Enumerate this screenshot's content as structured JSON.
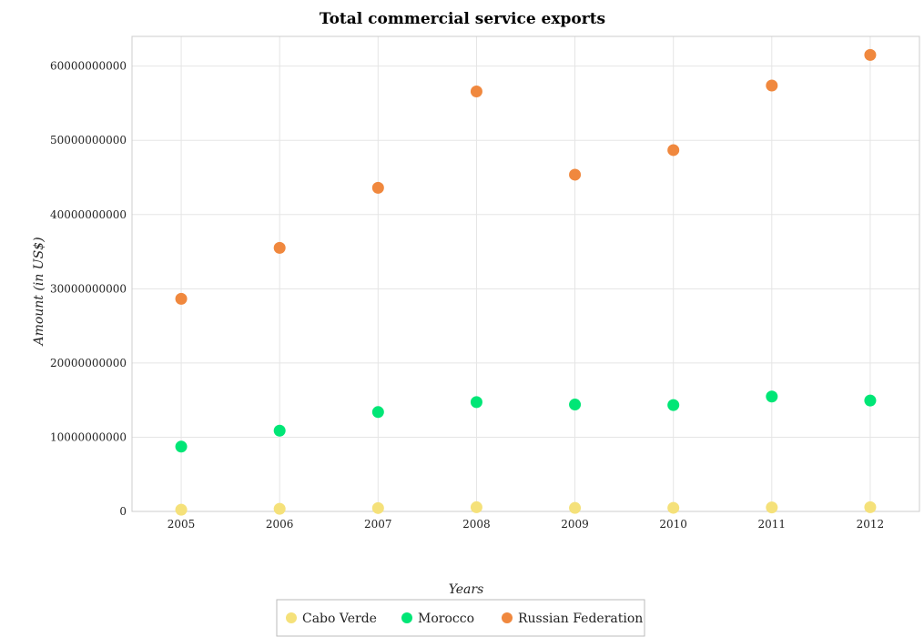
{
  "chart_data": {
    "type": "scatter",
    "title": "Total commercial service exports",
    "xlabel": "Years",
    "ylabel": "Amount (in US$)",
    "x": [
      "2005",
      "2006",
      "2007",
      "2008",
      "2009",
      "2010",
      "2011",
      "2012"
    ],
    "ylim": [
      0,
      64000000000
    ],
    "yticks": [
      0,
      10000000000,
      20000000000,
      30000000000,
      40000000000,
      50000000000,
      60000000000
    ],
    "ytick_labels": [
      "0",
      "10000000000",
      "20000000000",
      "30000000000",
      "40000000000",
      "50000000000",
      "60000000000"
    ],
    "grid": true,
    "legend_position": "bottom-center",
    "series": [
      {
        "name": "Cabo Verde",
        "color": "#f5e17a",
        "values": [
          230000000,
          350000000,
          450000000,
          560000000,
          470000000,
          480000000,
          540000000,
          570000000
        ]
      },
      {
        "name": "Morocco",
        "color": "#00e676",
        "values": [
          8730000000,
          10880000000,
          13390000000,
          14730000000,
          14400000000,
          14330000000,
          15480000000,
          14940000000
        ]
      },
      {
        "name": "Russian Federation",
        "color": "#f0883e",
        "values": [
          28640000000,
          35510000000,
          43600000000,
          56580000000,
          45370000000,
          48680000000,
          57380000000,
          61500000000
        ]
      }
    ]
  }
}
